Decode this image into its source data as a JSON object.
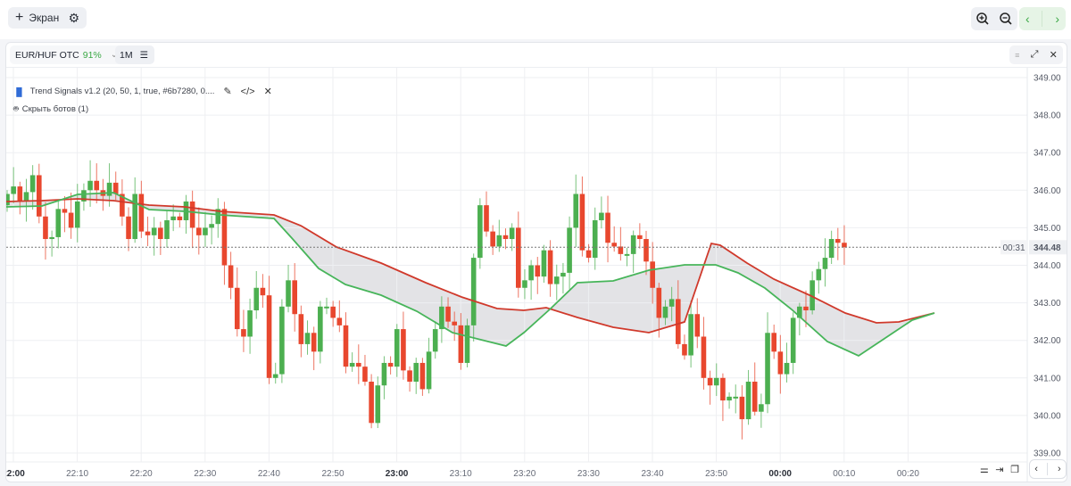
{
  "toolbar": {
    "add_screen_label": "Экран",
    "icons": [
      "plus-icon",
      "gear-icon",
      "zoom-in-icon",
      "zoom-out-icon",
      "chevron-left-icon",
      "chevron-right-icon"
    ]
  },
  "panel": {
    "symbol": "EUR/HUF OTC",
    "payout": "91%",
    "timeframe": "1M",
    "indicator": "Trend Signals v1.2 (20, 50, 1, true, #6b7280, 0....",
    "hide_bots": "Скрыть ботов (1)",
    "current_price": "344.48",
    "countdown": "00:31"
  },
  "colors": {
    "up": "#4caf50",
    "down": "#e8472e",
    "band_fill": "#d9dadd",
    "band_red": "#d0392b",
    "band_green": "#47b55a",
    "accent_green": "#3aa845"
  },
  "chart_data": {
    "type": "candlestick",
    "title": "EUR/HUF OTC 1M",
    "xlabel": "",
    "ylabel": "",
    "ylim": [
      338.8,
      349.3
    ],
    "y_ticks": [
      "349.00",
      "348.00",
      "347.00",
      "346.00",
      "345.00",
      "344.00",
      "343.00",
      "342.00",
      "341.00",
      "340.00",
      "339.00"
    ],
    "x_ticks": [
      {
        "label": "22:00",
        "bold": true
      },
      {
        "label": "22:10",
        "bold": false
      },
      {
        "label": "22:20",
        "bold": false
      },
      {
        "label": "22:30",
        "bold": false
      },
      {
        "label": "22:40",
        "bold": false
      },
      {
        "label": "22:50",
        "bold": false
      },
      {
        "label": "23:00",
        "bold": true
      },
      {
        "label": "23:10",
        "bold": false
      },
      {
        "label": "23:20",
        "bold": false
      },
      {
        "label": "23:30",
        "bold": false
      },
      {
        "label": "23:40",
        "bold": false
      },
      {
        "label": "23:50",
        "bold": false
      },
      {
        "label": "00:00",
        "bold": true
      },
      {
        "label": "00:10",
        "bold": false
      },
      {
        "label": "00:20",
        "bold": false
      }
    ],
    "last_price": 344.48,
    "candles_close": [
      345.9,
      346.1,
      345.7,
      345.95,
      346.4,
      345.3,
      344.7,
      344.75,
      345.5,
      345.4,
      345.0,
      345.7,
      346.0,
      346.25,
      346.0,
      345.85,
      346.2,
      345.9,
      345.3,
      344.7,
      345.9,
      344.9,
      344.8,
      345.0,
      344.7,
      345.2,
      345.3,
      345.2,
      345.7,
      345.0,
      344.8,
      345.0,
      345.1,
      345.5,
      344.0,
      343.4,
      342.3,
      342.1,
      342.8,
      343.4,
      343.2,
      341.0,
      341.1,
      342.9,
      343.6,
      342.7,
      341.9,
      342.2,
      341.7,
      342.9,
      342.9,
      342.6,
      342.4,
      341.3,
      341.4,
      341.3,
      340.9,
      339.8,
      340.8,
      341.4,
      341.3,
      342.3,
      341.2,
      340.9,
      341.4,
      340.7,
      341.7,
      342.3,
      342.9,
      342.5,
      342.4,
      341.4,
      342.4,
      344.2,
      345.6,
      344.9,
      344.5,
      344.8,
      344.7,
      345.0,
      343.4,
      343.6,
      344.0,
      343.7,
      344.4,
      343.5,
      343.7,
      343.8,
      345.0,
      345.9,
      344.4,
      344.2,
      345.2,
      345.4,
      344.6,
      344.5,
      344.3,
      344.3,
      344.8,
      344.7,
      344.1,
      343.4,
      342.6,
      342.9,
      343.1,
      341.9,
      341.6,
      342.7,
      342.1,
      341.0,
      340.8,
      341.0,
      340.4,
      340.5,
      340.5,
      339.9,
      340.9,
      340.1,
      340.3,
      342.2,
      341.7,
      341.1,
      341.4,
      342.6,
      342.9,
      342.8,
      343.6,
      343.9,
      344.2,
      344.7,
      344.6,
      344.48
    ],
    "band_upper_red": "see template",
    "band_lower_green": "see template"
  }
}
